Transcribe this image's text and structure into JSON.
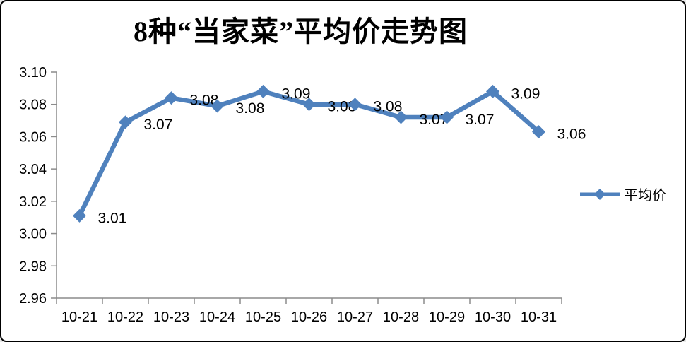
{
  "window": {
    "background": "#ffffff",
    "border_color": "#000000"
  },
  "colors": {
    "series": "#4f81bd",
    "axis": "#8c8c8c",
    "text": "#000000"
  },
  "legend": {
    "label": "平均价"
  },
  "chart_data": {
    "type": "line",
    "title": "8种“当家菜”平均价走势图",
    "categories": [
      "10-21",
      "10-22",
      "10-23",
      "10-24",
      "10-25",
      "10-26",
      "10-27",
      "10-28",
      "10-29",
      "10-30",
      "10-31"
    ],
    "series": [
      {
        "name": "平均价",
        "values": [
          3.011,
          3.069,
          3.084,
          3.079,
          3.088,
          3.08,
          3.08,
          3.072,
          3.072,
          3.088,
          3.063
        ],
        "point_labels": [
          "3.01",
          "3.07",
          "3.08",
          "3.08",
          "3.09",
          "3.08",
          "3.08",
          "3.07",
          "3.07",
          "3.09",
          "3.06"
        ]
      }
    ],
    "xlabel": "",
    "ylabel": "",
    "ylim": [
      2.96,
      3.1
    ],
    "ytick_step": 0.02,
    "ytick_labels": [
      "3.10",
      "3.08",
      "3.06",
      "3.04",
      "3.02",
      "3.00",
      "2.98",
      "2.96"
    ],
    "grid": false,
    "legend_position": "right",
    "marker": "diamond"
  }
}
